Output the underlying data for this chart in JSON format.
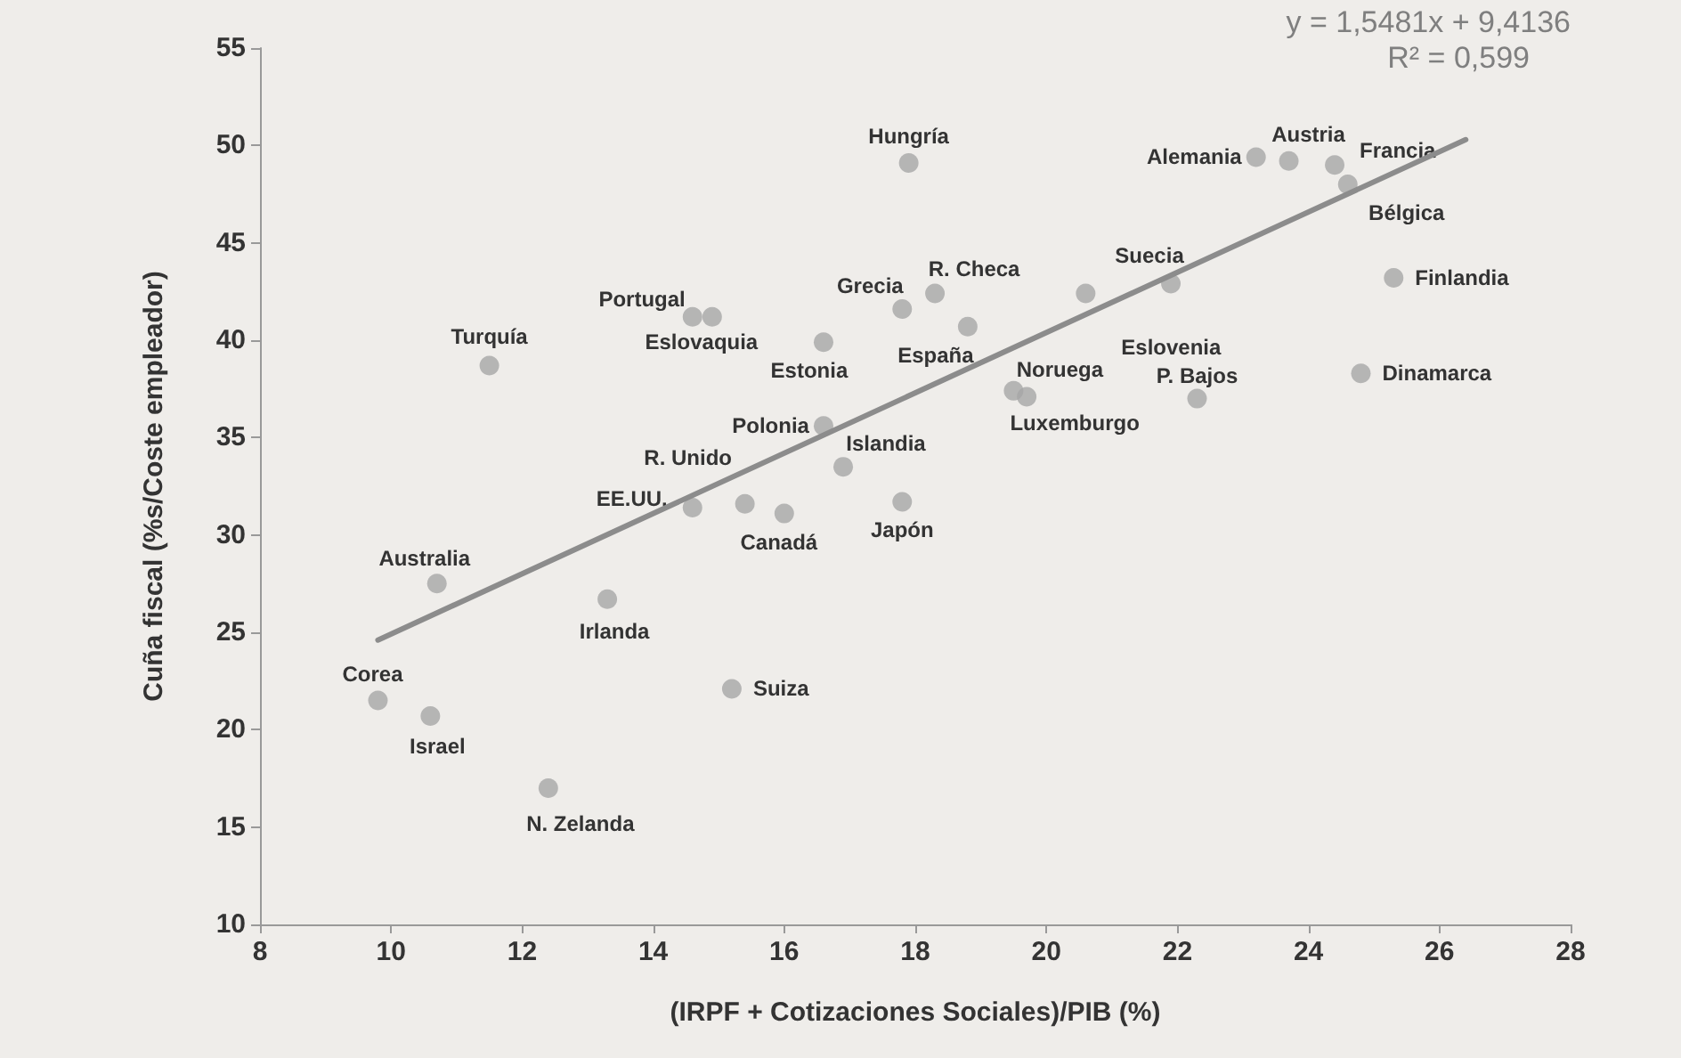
{
  "chart_data": {
    "type": "scatter",
    "xlabel": "(IRPF + Cotizaciones Sociales)/PIB (%)",
    "ylabel": "Cuña fiscal (%s/Coste empleador)",
    "xlim": [
      8,
      28
    ],
    "xticks": [
      8,
      10,
      12,
      14,
      16,
      18,
      20,
      22,
      24,
      26,
      28
    ],
    "ylim": [
      10,
      55
    ],
    "yticks": [
      10,
      15,
      20,
      25,
      30,
      35,
      40,
      45,
      50,
      55
    ],
    "grid": false,
    "marker": "circle",
    "series": [
      {
        "type": "scatter",
        "color": "#a6a6a6",
        "x": [
          17.9,
          14.6,
          14.9,
          11.5,
          16.6,
          17.8,
          18.3,
          18.8,
          20.6,
          21.9,
          19.5,
          19.7,
          22.3,
          24.8,
          25.3,
          23.2,
          23.7,
          24.4,
          24.6,
          16.6,
          16.9,
          14.6,
          15.4,
          16.0,
          17.8,
          10.7,
          13.3,
          9.8,
          10.6,
          15.2,
          12.4
        ],
        "values": [
          49.1,
          41.2,
          41.2,
          38.7,
          39.9,
          41.6,
          42.4,
          40.7,
          42.4,
          42.9,
          37.4,
          37.1,
          37.0,
          38.3,
          43.2,
          49.4,
          49.2,
          49.0,
          48.0,
          35.6,
          33.5,
          31.4,
          31.6,
          31.1,
          31.7,
          27.5,
          26.7,
          21.5,
          20.7,
          22.1,
          17.0
        ]
      },
      {
        "type": "line",
        "color": "#8c8c8c",
        "line_style": "solid",
        "marker": "none",
        "x": [
          9.8,
          26.4
        ],
        "values": [
          24.6,
          50.3
        ]
      }
    ],
    "annotations": [
      {
        "text": "Hungría",
        "x": 17.9,
        "y": 49.1
      },
      {
        "text": "Portugal",
        "x": 14.6,
        "y": 41.2
      },
      {
        "text": "Eslovaquia",
        "x": 14.9,
        "y": 41.2
      },
      {
        "text": "Turquía",
        "x": 11.5,
        "y": 38.7
      },
      {
        "text": "Estonia",
        "x": 16.6,
        "y": 39.9
      },
      {
        "text": "Grecia",
        "x": 17.8,
        "y": 41.6
      },
      {
        "text": "R. Checa",
        "x": 18.3,
        "y": 42.4
      },
      {
        "text": "España",
        "x": 18.8,
        "y": 40.7
      },
      {
        "text": "Eslovenia",
        "x": 20.6,
        "y": 42.4
      },
      {
        "text": "Suecia",
        "x": 21.9,
        "y": 42.9
      },
      {
        "text": "Noruega",
        "x": 19.5,
        "y": 37.4
      },
      {
        "text": "Luxemburgo",
        "x": 19.7,
        "y": 37.1
      },
      {
        "text": "P. Bajos",
        "x": 22.3,
        "y": 37.0
      },
      {
        "text": "Dinamarca",
        "x": 24.8,
        "y": 38.3
      },
      {
        "text": "Finlandia",
        "x": 25.3,
        "y": 43.2
      },
      {
        "text": "Alemania",
        "x": 23.2,
        "y": 49.4
      },
      {
        "text": "Austria",
        "x": 23.7,
        "y": 49.2
      },
      {
        "text": "Francia",
        "x": 24.4,
        "y": 49.0
      },
      {
        "text": "Bélgica",
        "x": 24.6,
        "y": 48.0
      },
      {
        "text": "Polonia",
        "x": 16.6,
        "y": 35.6
      },
      {
        "text": "Islandia",
        "x": 16.9,
        "y": 33.5
      },
      {
        "text": "EE.UU.",
        "x": 14.6,
        "y": 31.4
      },
      {
        "text": "R. Unido",
        "x": 15.4,
        "y": 31.6
      },
      {
        "text": "Canadá",
        "x": 16.0,
        "y": 31.1
      },
      {
        "text": "Japón",
        "x": 17.8,
        "y": 31.7
      },
      {
        "text": "Australia",
        "x": 10.7,
        "y": 27.5
      },
      {
        "text": "Irlanda",
        "x": 13.3,
        "y": 26.7
      },
      {
        "text": "Corea",
        "x": 9.8,
        "y": 21.5
      },
      {
        "text": "Israel",
        "x": 10.6,
        "y": 20.7
      },
      {
        "text": "Suiza",
        "x": 15.2,
        "y": 22.1
      },
      {
        "text": "N. Zelanda",
        "x": 12.4,
        "y": 17.0
      },
      "y = 1,5481x + 9,4136",
      "R² = 0,599"
    ]
  }
}
